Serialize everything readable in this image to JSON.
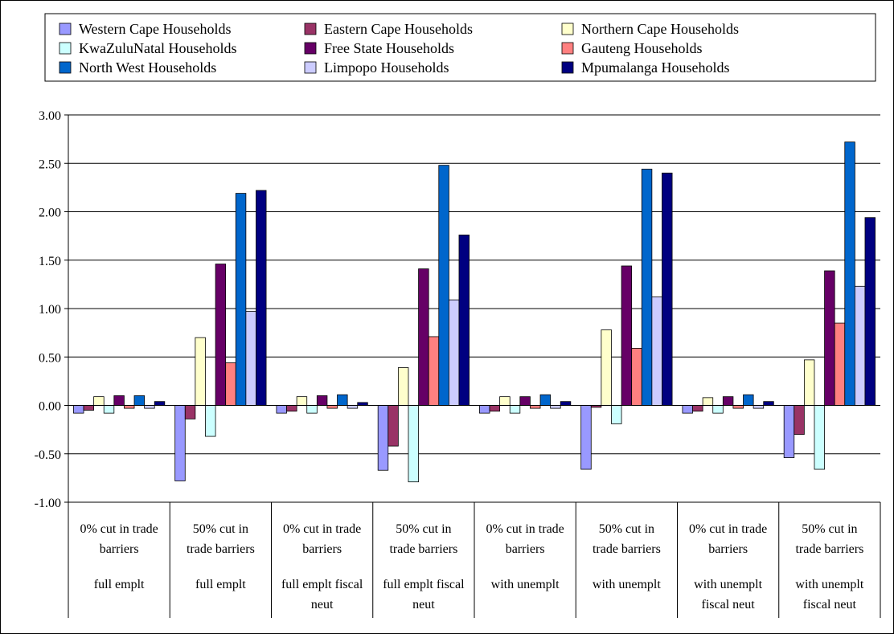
{
  "chart_data": {
    "type": "bar",
    "title": "",
    "xlabel": "",
    "ylabel": "",
    "ylim": [
      -1.0,
      3.0
    ],
    "yticks": [
      -1.0,
      -0.5,
      0.0,
      0.5,
      1.0,
      1.5,
      2.0,
      2.5,
      3.0
    ],
    "ytick_format": "2-decimals",
    "grid": "horizontal major gridlines",
    "legend_position": "top",
    "categories": [
      [
        "0% cut in trade barriers",
        "full emplt"
      ],
      [
        "50% cut in trade barriers",
        "full emplt"
      ],
      [
        "0% cut in trade barriers",
        "full emplt fiscal neut"
      ],
      [
        "50% cut in trade barriers",
        "full emplt fiscal neut"
      ],
      [
        "0% cut in trade barriers",
        "with unemplt"
      ],
      [
        "50% cut in trade barriers",
        "with unemplt"
      ],
      [
        "0% cut in trade barriers",
        "with unemplt fiscal neut"
      ],
      [
        "50% cut in trade barriers",
        "with unemplt fiscal neut"
      ]
    ],
    "category_lines": [
      [
        [
          "0% cut in trade",
          "barriers"
        ],
        [
          "full emplt"
        ]
      ],
      [
        [
          "50% cut in",
          "trade barriers"
        ],
        [
          "full emplt"
        ]
      ],
      [
        [
          "0% cut in trade",
          "barriers"
        ],
        [
          "full emplt fiscal",
          "neut"
        ]
      ],
      [
        [
          "50% cut in",
          "trade barriers"
        ],
        [
          "full emplt fiscal",
          "neut"
        ]
      ],
      [
        [
          "0% cut in trade",
          "barriers"
        ],
        [
          "with unemplt"
        ]
      ],
      [
        [
          "50% cut in",
          "trade barriers"
        ],
        [
          "with unemplt"
        ]
      ],
      [
        [
          "0% cut in trade",
          "barriers"
        ],
        [
          "with unemplt",
          "fiscal neut"
        ]
      ],
      [
        [
          "50% cut in",
          "trade barriers"
        ],
        [
          "with unemplt",
          "fiscal neut"
        ]
      ]
    ],
    "series": [
      {
        "name": "Western Cape Households",
        "color": "#9999ff",
        "values": [
          -0.08,
          -0.78,
          -0.08,
          -0.67,
          -0.08,
          -0.66,
          -0.08,
          -0.54
        ]
      },
      {
        "name": "Eastern Cape Households",
        "color": "#993366",
        "values": [
          -0.05,
          -0.14,
          -0.06,
          -0.42,
          -0.06,
          -0.02,
          -0.06,
          -0.3
        ]
      },
      {
        "name": "Northern Cape Households",
        "color": "#ffffcc",
        "values": [
          0.09,
          0.7,
          0.09,
          0.39,
          0.09,
          0.78,
          0.08,
          0.47
        ]
      },
      {
        "name": "KwaZuluNatal Households",
        "color": "#ccffff",
        "values": [
          -0.08,
          -0.32,
          -0.08,
          -0.79,
          -0.08,
          -0.19,
          -0.08,
          -0.66
        ]
      },
      {
        "name": "Free State Households",
        "color": "#660066",
        "values": [
          0.1,
          1.46,
          0.1,
          1.41,
          0.09,
          1.44,
          0.09,
          1.39
        ]
      },
      {
        "name": "Gauteng Households",
        "color": "#ff8080",
        "values": [
          -0.03,
          0.44,
          -0.03,
          0.71,
          -0.03,
          0.59,
          -0.03,
          0.85
        ]
      },
      {
        "name": "North West Households",
        "color": "#0066cc",
        "values": [
          0.1,
          2.19,
          0.11,
          2.48,
          0.11,
          2.44,
          0.11,
          2.72
        ]
      },
      {
        "name": "Limpopo Households",
        "color": "#ccccff",
        "values": [
          -0.03,
          0.97,
          -0.03,
          1.09,
          -0.03,
          1.12,
          -0.03,
          1.23
        ]
      },
      {
        "name": "Mpumalanga Households",
        "color": "#000080",
        "values": [
          0.04,
          2.22,
          0.03,
          1.76,
          0.04,
          2.4,
          0.04,
          1.94
        ]
      }
    ]
  }
}
